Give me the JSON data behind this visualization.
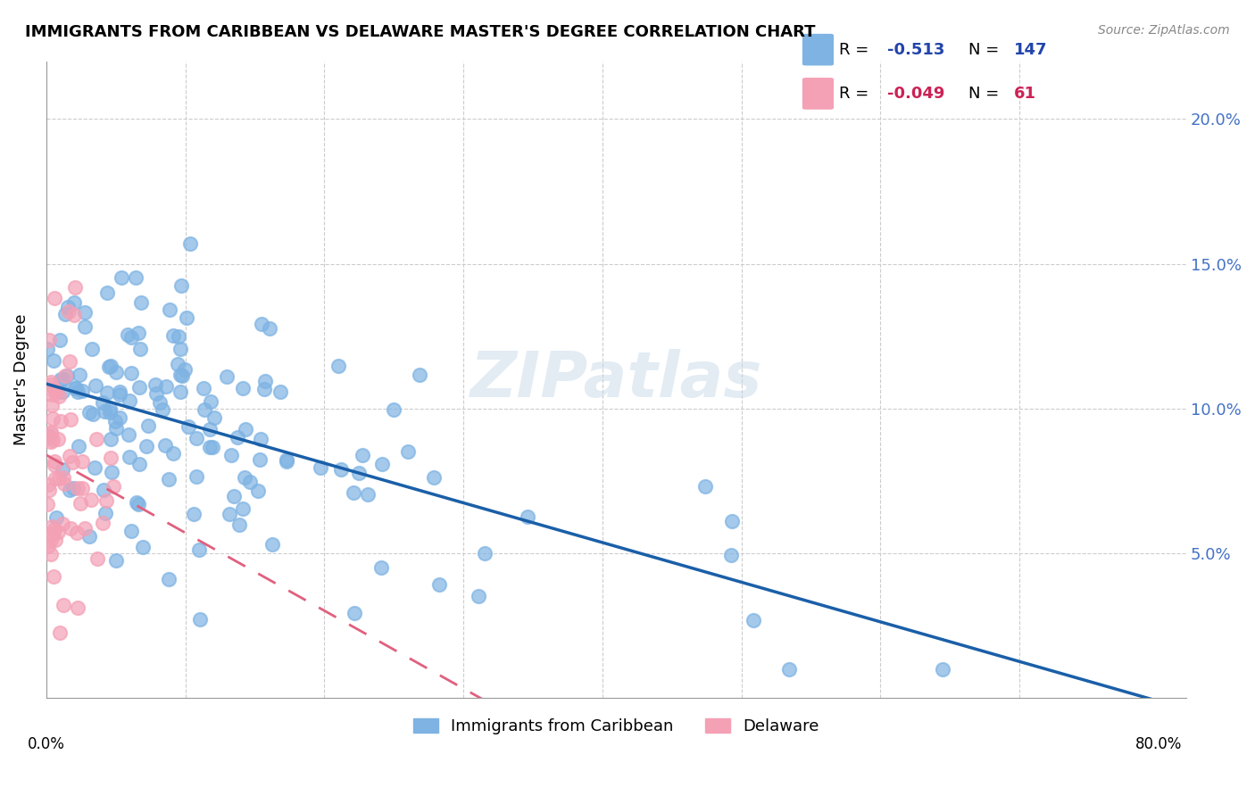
{
  "title": "IMMIGRANTS FROM CARIBBEAN VS DELAWARE MASTER'S DEGREE CORRELATION CHART",
  "source": "Source: ZipAtlas.com",
  "ylabel": "Master's Degree",
  "right_yticks": [
    "5.0%",
    "10.0%",
    "15.0%",
    "20.0%"
  ],
  "legend_blue_r": "-0.513",
  "legend_blue_n": "147",
  "legend_pink_r": "-0.049",
  "legend_pink_n": "61",
  "blue_color": "#7EB3E3",
  "pink_color": "#F4A0B5",
  "blue_line_color": "#1A5FA8",
  "pink_line_color": "#E0607E",
  "watermark": "ZIPatlas",
  "xlim": [
    0.0,
    0.82
  ],
  "ylim": [
    0.0,
    0.22
  ],
  "figsize": [
    14.06,
    8.92
  ],
  "dpi": 100
}
